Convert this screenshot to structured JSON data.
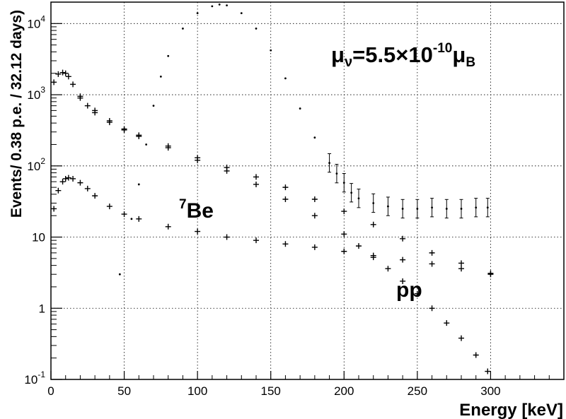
{
  "chart_data": {
    "type": "scatter",
    "title": "",
    "xlabel": "Energy [keV]",
    "ylabel": "Events/ 0.38 p.e. /   32.12 days)",
    "xlim": [
      0,
      350
    ],
    "ylim": [
      0.1,
      20000
    ],
    "y_scale": "log",
    "grid": true,
    "x_ticks": [
      0,
      50,
      100,
      150,
      200,
      250,
      300
    ],
    "y_ticks": [
      {
        "value": 0.1,
        "base": "10",
        "exp": "-1"
      },
      {
        "value": 1,
        "base": "1",
        "exp": ""
      },
      {
        "value": 10,
        "base": "10",
        "exp": ""
      },
      {
        "value": 100,
        "base": "10",
        "exp": "2"
      },
      {
        "value": 1000,
        "base": "10",
        "exp": "3"
      },
      {
        "value": 10000,
        "base": "10",
        "exp": "4"
      }
    ],
    "annotations": {
      "mu": {
        "mu": "μ",
        "nu": "ν",
        "eq": "=5.5×10",
        "exp": "-10",
        "mu2": "μ",
        "sub": "B"
      },
      "be7": {
        "sup": "7",
        "text": "Be"
      },
      "pp": {
        "text": "pp"
      }
    },
    "series": [
      {
        "key": "be7",
        "x": [
          2,
          5,
          8,
          10,
          12,
          15,
          20,
          25,
          30,
          40,
          50,
          60,
          80,
          100,
          120,
          140,
          160,
          180,
          200,
          220,
          240,
          260,
          280,
          300
        ],
        "y": [
          25,
          45,
          60,
          66,
          68,
          66,
          58,
          48,
          38,
          27,
          21,
          18,
          14,
          12,
          10,
          9,
          8,
          7.2,
          6.3,
          5.5,
          4.8,
          4.2,
          3.6,
          3.0
        ]
      },
      {
        "key": "sum",
        "x": [
          2,
          5,
          8,
          10,
          12,
          15,
          20,
          25,
          30,
          40,
          50,
          60,
          80,
          100,
          120,
          140,
          160,
          180,
          200,
          220,
          240,
          260,
          280,
          300
        ],
        "y": [
          1500,
          1950,
          2050,
          2000,
          1800,
          1400,
          950,
          700,
          560,
          410,
          320,
          260,
          180,
          130,
          95,
          70,
          50,
          34,
          23,
          15,
          9.5,
          6,
          4.3,
          3.1
        ]
      },
      {
        "key": "pp",
        "x": [
          20,
          30,
          40,
          50,
          60,
          80,
          100,
          120,
          140,
          160,
          180,
          200,
          210,
          220,
          230,
          240,
          250,
          260,
          270,
          280,
          290,
          298
        ],
        "y": [
          900,
          600,
          430,
          330,
          270,
          190,
          120,
          85,
          55,
          34,
          20,
          11,
          7.5,
          5.2,
          3.6,
          2.4,
          1.6,
          1.0,
          0.62,
          0.38,
          0.22,
          0.13
        ]
      },
      {
        "key": "signal",
        "x": [
          47,
          55,
          60,
          65,
          70,
          75,
          80,
          90,
          100,
          110,
          115,
          120,
          130,
          140,
          150,
          160,
          170,
          180,
          190,
          195,
          200,
          205,
          210,
          220,
          230,
          240,
          250,
          260,
          270,
          280,
          290,
          298
        ],
        "y": [
          3,
          18,
          55,
          200,
          700,
          1800,
          3500,
          8500,
          14000,
          17500,
          18500,
          18000,
          14000,
          8500,
          4200,
          1700,
          640,
          250,
          110,
          78,
          58,
          42,
          35,
          30,
          27,
          25,
          25,
          26,
          25,
          25,
          26,
          26
        ]
      }
    ]
  }
}
